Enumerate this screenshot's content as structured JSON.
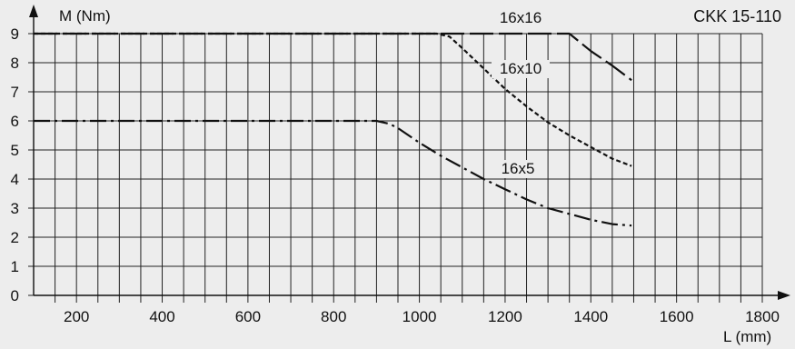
{
  "chart_data": {
    "type": "line",
    "title": "CKK 15-110",
    "xlabel": "L (mm)",
    "ylabel": "M (Nm)",
    "xlim": [
      100,
      1800
    ],
    "ylim": [
      0,
      9
    ],
    "x_ticks": [
      200,
      400,
      600,
      800,
      1000,
      1200,
      1400,
      1600,
      1800
    ],
    "y_ticks": [
      0,
      1,
      2,
      3,
      4,
      5,
      6,
      7,
      8,
      9
    ],
    "grid": true,
    "series": [
      {
        "name": "16x16",
        "style": "long-dash",
        "x": [
          100,
          1350,
          1400,
          1450,
          1495
        ],
        "y": [
          9,
          9,
          8.4,
          7.9,
          7.4
        ]
      },
      {
        "name": "16x10",
        "style": "short-dash",
        "x": [
          100,
          1040,
          1070,
          1100,
          1150,
          1200,
          1250,
          1300,
          1350,
          1400,
          1450,
          1495
        ],
        "y": [
          9,
          9,
          8.9,
          8.5,
          7.8,
          7.1,
          6.5,
          5.95,
          5.5,
          5.1,
          4.7,
          4.45
        ]
      },
      {
        "name": "16x5",
        "style": "dash-dot",
        "x": [
          100,
          900,
          930,
          950,
          1000,
          1050,
          1100,
          1150,
          1200,
          1250,
          1300,
          1350,
          1400,
          1450,
          1495
        ],
        "y": [
          6,
          6,
          5.9,
          5.75,
          5.25,
          4.8,
          4.4,
          4.0,
          3.65,
          3.3,
          3.0,
          2.8,
          2.6,
          2.45,
          2.4
        ]
      }
    ]
  }
}
